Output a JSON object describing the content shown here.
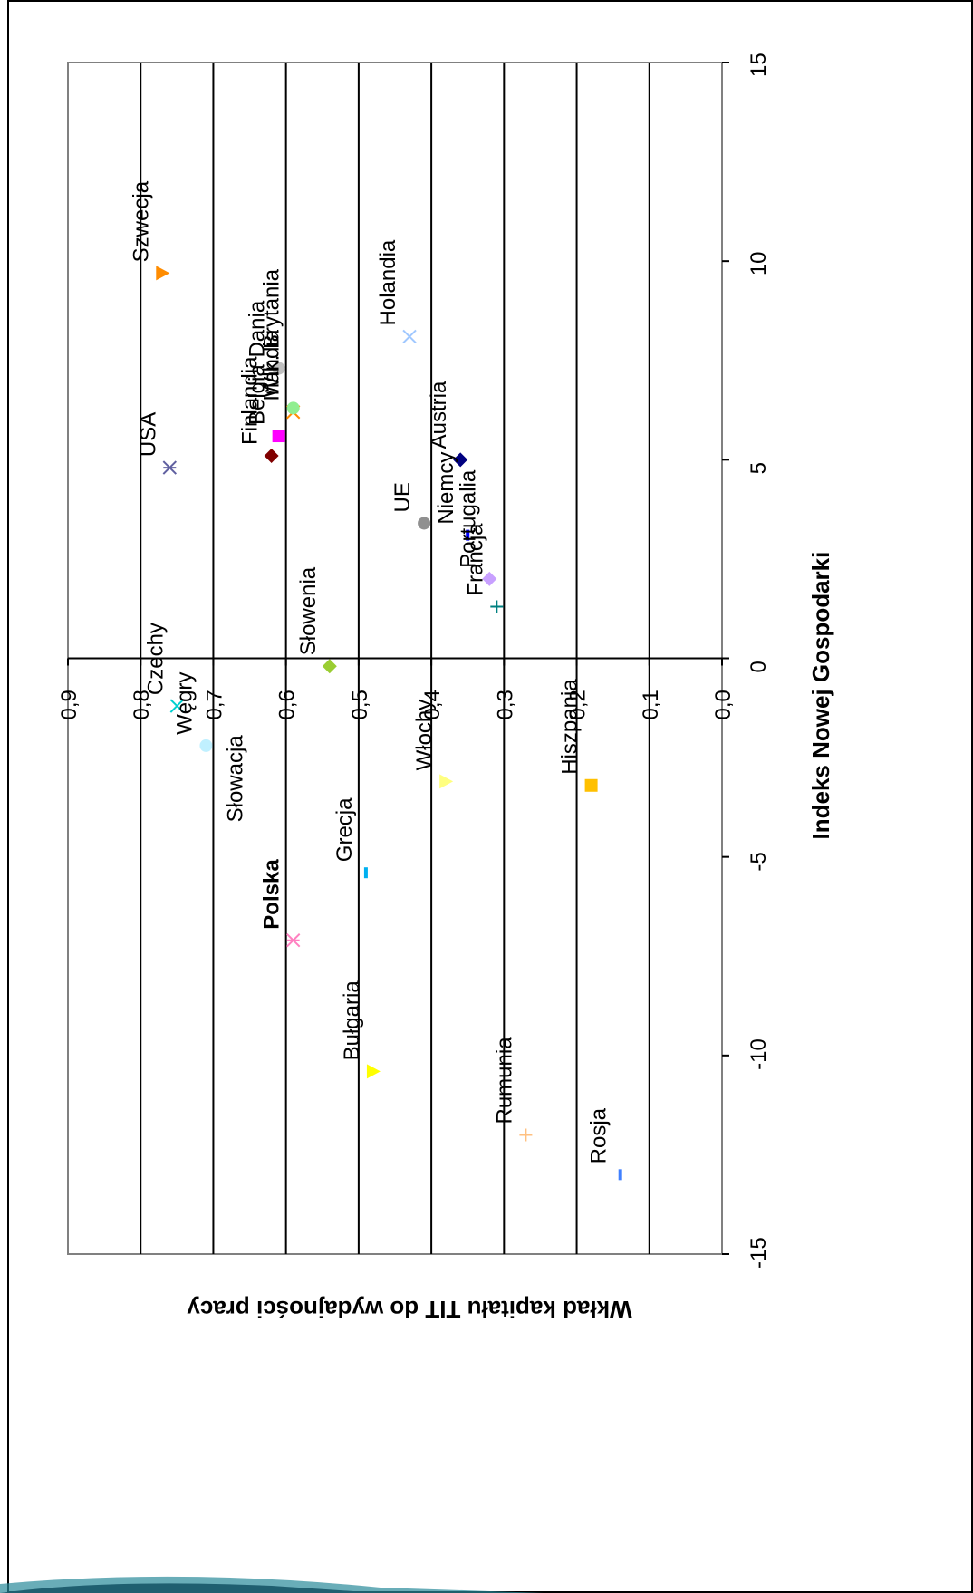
{
  "chart_data": {
    "type": "scatter",
    "title": "",
    "xlabel": "Indeks Nowej Gospodarki",
    "ylabel": "Wkład kapitału TIT do wydajności pracy",
    "xlim": [
      -15,
      15
    ],
    "ylim": [
      0.0,
      0.9
    ],
    "x_ticks": [
      "-15",
      "-10",
      "-5",
      "0",
      "5",
      "10",
      "15"
    ],
    "y_ticks": [
      "0,0",
      "0,1",
      "0,2",
      "0,3",
      "0,4",
      "0,5",
      "0,6",
      "0,7",
      "0,8",
      "0,9"
    ],
    "grid": true,
    "orientation": "rotated-90-clockwise",
    "points": [
      {
        "label": "Szwecja",
        "x": 9.7,
        "y": 0.77,
        "color": "#ff8c00",
        "marker": "triangle"
      },
      {
        "label": "USA",
        "x": 4.8,
        "y": 0.76,
        "color": "#6060a0",
        "marker": "asterisk"
      },
      {
        "label": "Dania",
        "x": 7.3,
        "y": 0.61,
        "color": "#c0c0c0",
        "marker": "circle"
      },
      {
        "label": "Finlandia",
        "x": 5.1,
        "y": 0.62,
        "color": "#800000",
        "marker": "diamond"
      },
      {
        "label": "Belgia",
        "x": 5.6,
        "y": 0.61,
        "color": "#ff00ff",
        "marker": "square"
      },
      {
        "label": "Irlandia",
        "x": 6.2,
        "y": 0.59,
        "color": "#ff8c00",
        "marker": "x"
      },
      {
        "label": "Wlk. Brytania",
        "x": 6.3,
        "y": 0.59,
        "color": "#90ee90",
        "marker": "circle"
      },
      {
        "label": "Holandia",
        "x": 8.1,
        "y": 0.43,
        "color": "#a0c8ff",
        "marker": "x"
      },
      {
        "label": "UE",
        "x": 3.4,
        "y": 0.41,
        "color": "#909090",
        "marker": "circle"
      },
      {
        "label": "Austria",
        "x": 5.0,
        "y": 0.36,
        "color": "#000080",
        "marker": "diamond"
      },
      {
        "label": "Niemcy",
        "x": 3.1,
        "y": 0.35,
        "color": "#0000ff",
        "marker": "dash"
      },
      {
        "label": "Portugalia",
        "x": 2.0,
        "y": 0.32,
        "color": "#c8a0ff",
        "marker": "diamond"
      },
      {
        "label": "Francja",
        "x": 1.3,
        "y": 0.31,
        "color": "#008080",
        "marker": "plus"
      },
      {
        "label": "Słowenia",
        "x": -0.2,
        "y": 0.54,
        "color": "#9acd32",
        "marker": "diamond"
      },
      {
        "label": "Czechy",
        "x": -1.2,
        "y": 0.75,
        "color": "#00d0d0",
        "marker": "x"
      },
      {
        "label": "Węgry",
        "x": -2.2,
        "y": 0.71,
        "color": "#c0f0ff",
        "marker": "circle"
      },
      {
        "label": "Włochy",
        "x": -3.1,
        "y": 0.38,
        "color": "#ffff80",
        "marker": "triangle"
      },
      {
        "label": "Hiszpania",
        "x": -3.2,
        "y": 0.18,
        "color": "#ffc000",
        "marker": "square"
      },
      {
        "label": "Słowacja",
        "x": -4.4,
        "y": 0.64,
        "color": "#000000",
        "marker": "none"
      },
      {
        "label": "Grecja",
        "x": -5.4,
        "y": 0.49,
        "color": "#00b0f0",
        "marker": "dash"
      },
      {
        "label": "Polska",
        "x": -7.1,
        "y": 0.59,
        "color": "#ff80c0",
        "marker": "asterisk",
        "bold": true
      },
      {
        "label": "Bułgaria",
        "x": -10.4,
        "y": 0.48,
        "color": "#ffff00",
        "marker": "triangle"
      },
      {
        "label": "Rumunia",
        "x": -12.0,
        "y": 0.27,
        "color": "#ffc080",
        "marker": "plus"
      },
      {
        "label": "Rosja",
        "x": -13.0,
        "y": 0.14,
        "color": "#4080ff",
        "marker": "dash"
      }
    ]
  }
}
